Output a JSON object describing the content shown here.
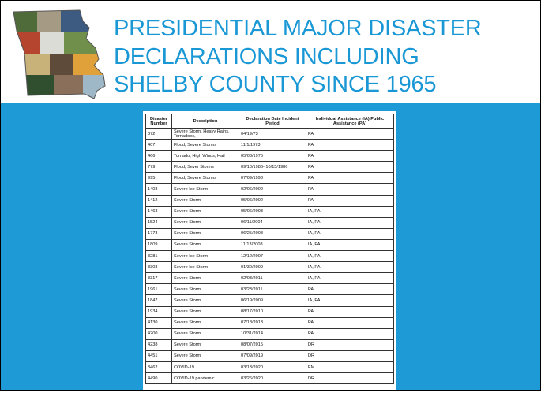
{
  "title": {
    "lines": [
      "PRESIDENTIAL MAJOR DISASTER",
      "DECLARATIONS INCLUDING",
      "SHELBY COUNTY SINCE 1965"
    ]
  },
  "table": {
    "headers": [
      "Disaster Number",
      "Description",
      "Declaration Date Incident Period",
      "Individual Assistance (IA) Public Assistance (PA)"
    ],
    "rows": [
      [
        "372",
        "Severe Storm, Heavy Rains, Tornadoes,",
        "04/19/73",
        "PA"
      ],
      [
        "407",
        "Flood, Severe Storms",
        "11/1/1973",
        "PA"
      ],
      [
        "466",
        "Tornado, High Winds, Hail",
        "05/03/1975",
        "PA"
      ],
      [
        "779",
        "Flood, Sever Storms",
        "09/10/1986- 10/15/1986",
        "PA"
      ],
      [
        "995",
        "Flood, Severe Storms",
        "07/09/1993",
        "PA"
      ],
      [
        "1403",
        "Severe Ice Storm",
        "02/06/2002",
        "PA"
      ],
      [
        "1412",
        "Severe Storm",
        "05/06/2002",
        "PA"
      ],
      [
        "1463",
        "Severe Storm",
        "05/06/2003",
        "IA, PA"
      ],
      [
        "1524",
        "Severe Storm",
        "06/11/2004",
        "IA, PA"
      ],
      [
        "1773",
        "Severe Storm",
        "06/25/2008",
        "IA, PA"
      ],
      [
        "1809",
        "Severe Storm",
        "11/13/2008",
        "IA, PA"
      ],
      [
        "3281",
        "Severe Ice Storm",
        "12/12/2007",
        "IA, PA"
      ],
      [
        "3303",
        "Severe Ice Storm",
        "01/30/2009",
        "IA, PA"
      ],
      [
        "3317",
        "Severe Storm",
        "02/03/2011",
        "IA, PA"
      ],
      [
        "1961",
        "Severe Storm",
        "03/23/2011",
        "PA"
      ],
      [
        "1847",
        "Severe Storm",
        "06/19/2009",
        "IA, PA"
      ],
      [
        "1934",
        "Severe Storm",
        "08/17/2010",
        "PA"
      ],
      [
        "4130",
        "Severe Storm",
        "07/18/2013",
        "PA"
      ],
      [
        "4200",
        "Severe Storm",
        "10/31/2014",
        "PA"
      ],
      [
        "4238",
        "Severe Storm",
        "08/07/2015",
        "DR"
      ],
      [
        "4451",
        "Severe Storm",
        "07/09/2019",
        "DR"
      ],
      [
        "3462",
        "COVID-19",
        "03/13/2020",
        "EM"
      ],
      [
        "4490",
        "COVID-19 pandemic",
        "03/26/2020",
        "DR"
      ]
    ]
  }
}
